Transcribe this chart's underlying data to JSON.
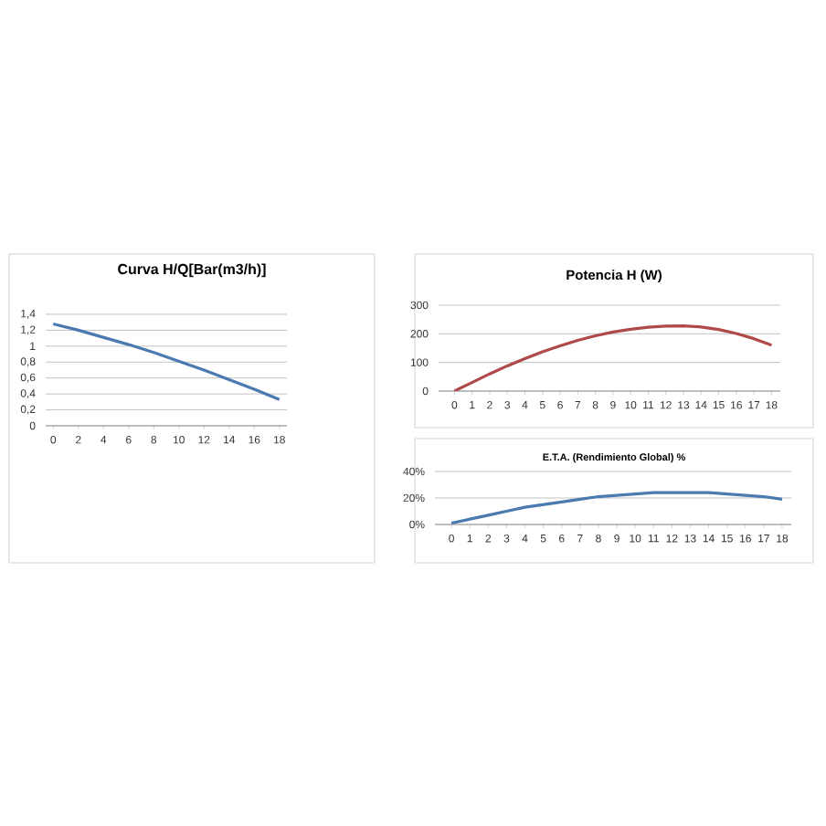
{
  "chart_data": [
    {
      "type": "line",
      "title": "Curva H/Q[Bar(m3/h)]",
      "color": "#4a7ab0",
      "grid": "y",
      "x": [
        0,
        2,
        4,
        6,
        8,
        10,
        12,
        14,
        16,
        18
      ],
      "values": [
        1.28,
        1.2,
        1.11,
        1.02,
        0.92,
        0.81,
        0.7,
        0.58,
        0.46,
        0.33
      ],
      "xlim": [
        -0.6,
        18.6
      ],
      "xticks": [
        0,
        2,
        4,
        6,
        8,
        10,
        12,
        14,
        16,
        18
      ],
      "ylim": [
        0,
        1.4
      ],
      "yticks": [
        0,
        {
          "value": 0.2,
          "label": "0,2"
        },
        {
          "value": 0.4,
          "label": "0,4"
        },
        {
          "value": 0.6,
          "label": "0,6"
        },
        {
          "value": 0.8,
          "label": "0,8"
        },
        1,
        {
          "value": 1.2,
          "label": "1,2"
        },
        {
          "value": 1.4,
          "label": "1,4"
        }
      ]
    },
    {
      "type": "line",
      "title": "Potencia H (W)",
      "color": "#b04a4a",
      "grid": "y",
      "categories": [
        "0",
        "1",
        "2",
        "3",
        "4",
        "5",
        "6",
        "7",
        "8",
        "9",
        "10",
        "11",
        "12",
        "13",
        "14",
        "15",
        "16",
        "17",
        "18"
      ],
      "values": [
        0,
        30,
        60,
        88,
        113,
        137,
        158,
        177,
        193,
        206,
        216,
        223,
        227,
        228,
        224,
        215,
        201,
        183,
        160
      ],
      "ylim": [
        0,
        300
      ],
      "yticks": [
        0,
        100,
        200,
        300
      ]
    },
    {
      "type": "line",
      "title": "E.T.A. (Rendimiento Global) %",
      "color": "#4a7ab0",
      "grid": "y",
      "categories": [
        "0",
        "1",
        "2",
        "3",
        "4",
        "5",
        "6",
        "7",
        "8",
        "9",
        "10",
        "11",
        "12",
        "13",
        "14",
        "15",
        "16",
        "17",
        "18"
      ],
      "values": [
        1,
        4,
        7,
        10,
        13,
        15,
        17,
        19,
        21,
        22,
        23,
        24,
        24,
        24,
        24,
        23,
        22,
        21,
        19
      ],
      "ylim": [
        0,
        40
      ],
      "yticks": [
        {
          "value": 0,
          "label": "0%"
        },
        {
          "value": 20,
          "label": "20%"
        },
        {
          "value": 40,
          "label": "40%"
        }
      ]
    }
  ]
}
